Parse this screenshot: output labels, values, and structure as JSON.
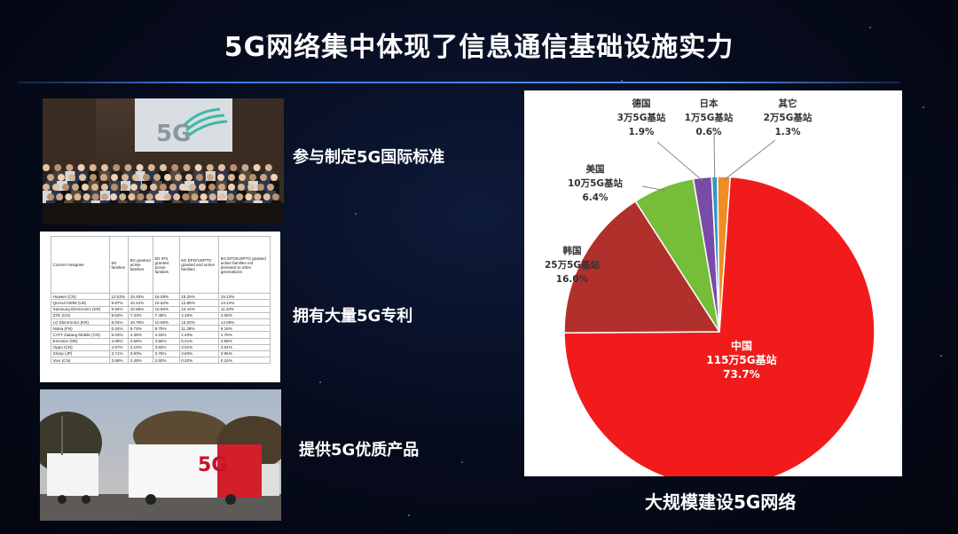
{
  "slide": {
    "title": "5G网络集中体现了信息通信基础设施实力",
    "captions": [
      "参与制定5G国际标准",
      "拥有大量5G专利",
      "提供5G优质产品"
    ],
    "bottom_caption": "大规模建设5G网络"
  },
  "photo1": {
    "screen_text": "5G"
  },
  "patent_table": {
    "headers": [
      "Current Assignee",
      "5G families",
      "5G granted active families",
      "5G IPS granted active families",
      "5G EPO/USPTO granted and active families",
      "5G EPO/USPTO granted active families not declared to other generations"
    ],
    "rows": [
      [
        "Huawei (CN)",
        "13.52%",
        "15.93%",
        "16.08%",
        "15.29%",
        "19.10%"
      ],
      [
        "QUALCOMM (US)",
        "9.97%",
        "10.44%",
        "10.52%",
        "12.85%",
        "13.24%"
      ],
      [
        "Samsung Electronics (KR)",
        "9.94%",
        "10.55%",
        "10.60%",
        "12.44%",
        "11.33%"
      ],
      [
        "ZTE (CN)",
        "9.63%",
        "7.43%",
        "7.48%",
        "4.33%",
        "4.08%"
      ],
      [
        "LG Electronics (KR)",
        "9.04%",
        "10.79%",
        "10.96%",
        "13.02%",
        "14.09%"
      ],
      [
        "Nokia (FN)",
        "6.34%",
        "9.74%",
        "9.75%",
        "11.38%",
        "9.18%"
      ],
      [
        "CATT Datang Mobile (CN)",
        "5.03%",
        "4.36%",
        "4.34%",
        "1.40%",
        "1.76%"
      ],
      [
        "Ericsson (SE)",
        "4.69%",
        "4.66%",
        "4.55%",
        "5.41%",
        "4.58%"
      ],
      [
        "Oppo (CN)",
        "4.57%",
        "4.10%",
        "3.82%",
        "3.01%",
        "4.04%"
      ],
      [
        "Sharp (JP)",
        "3.71%",
        "3.80%",
        "3.75%",
        "3.83%",
        "3.95%"
      ],
      [
        "Vivo (CN)",
        "3.68%",
        "2.46%",
        "2.50%",
        "0.20%",
        "0.24%"
      ]
    ]
  },
  "photo3": {
    "truck_text": "5G"
  },
  "chart_data": {
    "type": "pie",
    "slices": [
      {
        "label": "中国",
        "detail": "115万5G基站",
        "percent": "73.7%",
        "value": 73.7,
        "color": "#f21b1b"
      },
      {
        "label": "韩国",
        "detail": "25万5G基站",
        "percent": "16.0%",
        "value": 16.0,
        "color": "#b2302c"
      },
      {
        "label": "美国",
        "detail": "10万5G基站",
        "percent": "6.4%",
        "value": 6.4,
        "color": "#76bd3a"
      },
      {
        "label": "德国",
        "detail": "3万5G基站",
        "percent": "1.9%",
        "value": 1.9,
        "color": "#7a4ba6"
      },
      {
        "label": "日本",
        "detail": "1万5G基站",
        "percent": "0.6%",
        "value": 0.6,
        "color": "#2f97c9"
      },
      {
        "label": "其它",
        "detail": "2万5G基站",
        "percent": "1.3%",
        "value": 1.3,
        "color": "#f08c25"
      }
    ]
  }
}
